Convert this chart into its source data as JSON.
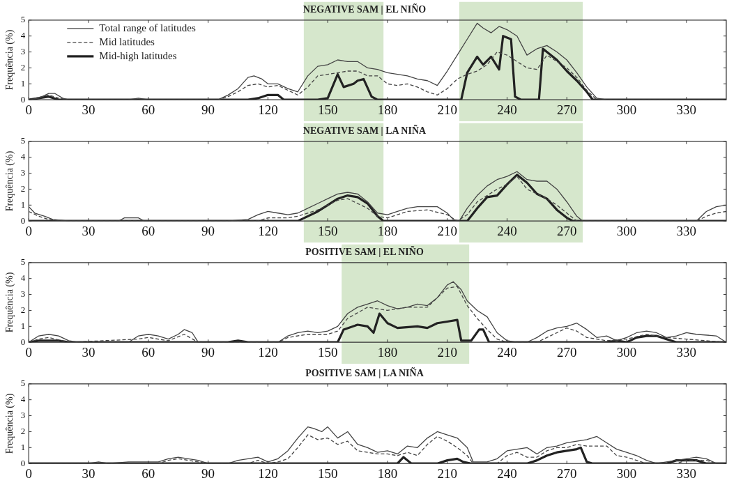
{
  "chart_data": [
    {
      "type": "line",
      "title": "NEGATIVE SAM | EL NIÑO",
      "ylabel": "Frequência (%)",
      "xlim": [
        0,
        350
      ],
      "xticks": [
        0,
        30,
        60,
        90,
        120,
        150,
        180,
        210,
        240,
        270,
        300,
        330
      ],
      "ylim": [
        0,
        5
      ],
      "yticks": [
        0,
        1,
        2,
        3,
        4,
        5
      ],
      "grid": false,
      "legend": "top left",
      "marker": "none",
      "bands": [
        {
          "axis": "x",
          "from": 138,
          "to": 178,
          "color": "#d6e7cc"
        },
        {
          "axis": "x",
          "from": 216,
          "to": 278,
          "color": "#d6e7cc"
        }
      ],
      "series": [
        {
          "name": "Total range of latitudes",
          "color": "#444444",
          "line_style": "solid",
          "x": [
            0,
            5,
            10,
            13,
            17,
            20,
            50,
            55,
            60,
            95,
            100,
            105,
            110,
            113,
            117,
            120,
            125,
            130,
            135,
            140,
            145,
            150,
            155,
            160,
            165,
            170,
            175,
            180,
            185,
            190,
            195,
            200,
            205,
            210,
            215,
            220,
            225,
            228,
            232,
            236,
            240,
            245,
            250,
            255,
            260,
            265,
            270,
            275,
            280,
            285,
            290,
            350
          ],
          "values": [
            0,
            0.1,
            0.4,
            0.4,
            0.1,
            0,
            0,
            0.1,
            0,
            0,
            0.3,
            0.7,
            1.4,
            1.5,
            1.3,
            1.0,
            1.0,
            0.7,
            0.5,
            1.5,
            2.1,
            2.2,
            2.5,
            2.4,
            2.4,
            2.0,
            1.9,
            1.7,
            1.6,
            1.5,
            1.3,
            1.2,
            0.9,
            1.8,
            2.8,
            3.8,
            4.8,
            4.5,
            4.2,
            4.6,
            4.4,
            4.0,
            2.8,
            3.2,
            3.4,
            3.0,
            2.5,
            1.7,
            0.8,
            0.1,
            0,
            0
          ]
        },
        {
          "name": "Mid latitudes",
          "color": "#444444",
          "line_style": "dashed",
          "x": [
            0,
            10,
            15,
            20,
            95,
            100,
            105,
            110,
            115,
            120,
            125,
            130,
            135,
            140,
            145,
            150,
            155,
            160,
            165,
            170,
            175,
            180,
            185,
            190,
            195,
            200,
            205,
            210,
            215,
            220,
            225,
            230,
            235,
            240,
            245,
            250,
            255,
            260,
            265,
            270,
            275,
            280,
            285,
            350
          ],
          "values": [
            0,
            0.3,
            0.1,
            0,
            0,
            0.2,
            0.5,
            0.9,
            1.0,
            0.8,
            0.9,
            0.6,
            0.3,
            0.8,
            1.5,
            1.6,
            1.7,
            1.8,
            1.8,
            1.5,
            1.5,
            1.0,
            0.9,
            1.0,
            0.8,
            0.5,
            0.3,
            0.7,
            1.3,
            1.6,
            1.8,
            2.2,
            3.0,
            2.8,
            2.4,
            2.0,
            1.9,
            2.8,
            2.4,
            2.0,
            1.4,
            0.6,
            0,
            0
          ]
        },
        {
          "name": "Mid-high latitudes",
          "color": "#222222",
          "line_style": "solid",
          "x": [
            0,
            10,
            15,
            110,
            115,
            120,
            125,
            128,
            145,
            150,
            155,
            158,
            163,
            165,
            168,
            172,
            175,
            217,
            220,
            225,
            228,
            232,
            236,
            238,
            242,
            244,
            247,
            256,
            258,
            265,
            270,
            275,
            280,
            283,
            350
          ],
          "values": [
            0,
            0.2,
            0,
            0,
            0.1,
            0.3,
            0.3,
            0,
            0,
            0.1,
            1.6,
            0.8,
            1.0,
            1.2,
            1.3,
            0.2,
            0,
            0,
            1.7,
            2.7,
            2.2,
            2.7,
            1.9,
            4.0,
            3.8,
            0.2,
            0,
            0,
            3.2,
            2.5,
            1.8,
            1.2,
            0.5,
            0,
            0
          ]
        }
      ]
    },
    {
      "type": "line",
      "title": "NEGATIVE SAM | LA NIÑA",
      "ylabel": "Frequência (%)",
      "xlim": [
        0,
        350
      ],
      "xticks": [
        0,
        30,
        60,
        90,
        120,
        150,
        180,
        210,
        240,
        270,
        300,
        330
      ],
      "ylim": [
        0,
        5
      ],
      "yticks": [
        0,
        1,
        2,
        3,
        4,
        5
      ],
      "grid": false,
      "marker": "none",
      "bands": [
        {
          "axis": "x",
          "from": 138,
          "to": 178,
          "color": "#d6e7cc"
        },
        {
          "axis": "x",
          "from": 216,
          "to": 278,
          "color": "#d6e7cc"
        }
      ],
      "series": [
        {
          "color": "#444444",
          "line_style": "solid",
          "x": [
            0,
            3,
            8,
            12,
            20,
            45,
            48,
            55,
            58,
            100,
            110,
            115,
            120,
            125,
            130,
            135,
            140,
            145,
            150,
            155,
            160,
            165,
            170,
            175,
            180,
            185,
            190,
            195,
            200,
            205,
            210,
            213,
            216,
            220,
            225,
            230,
            235,
            240,
            245,
            250,
            255,
            260,
            265,
            270,
            275,
            278,
            335,
            340,
            345,
            350
          ],
          "values": [
            0.9,
            0.5,
            0.3,
            0.1,
            0,
            0,
            0.2,
            0.2,
            0,
            0,
            0.1,
            0.4,
            0.6,
            0.5,
            0.4,
            0.5,
            0.8,
            1.1,
            1.4,
            1.7,
            1.8,
            1.7,
            1.2,
            0.5,
            0.4,
            0.6,
            0.8,
            0.9,
            0.9,
            0.9,
            0.5,
            0.1,
            0,
            0.8,
            1.6,
            2.2,
            2.6,
            2.8,
            3.1,
            2.6,
            2.5,
            2.5,
            2.0,
            1.2,
            0.3,
            0,
            0,
            0.6,
            0.9,
            1.0
          ]
        },
        {
          "color": "#444444",
          "line_style": "dashed",
          "x": [
            0,
            5,
            10,
            20,
            115,
            120,
            130,
            135,
            140,
            145,
            150,
            155,
            160,
            165,
            170,
            175,
            180,
            190,
            200,
            210,
            215,
            220,
            225,
            230,
            235,
            240,
            245,
            250,
            255,
            260,
            265,
            270,
            275,
            335,
            340,
            345,
            350
          ],
          "values": [
            0.6,
            0.3,
            0.1,
            0,
            0,
            0.2,
            0.2,
            0.3,
            0.5,
            0.7,
            1.0,
            1.3,
            1.4,
            1.1,
            0.8,
            0.3,
            0.2,
            0.6,
            0.7,
            0.4,
            0,
            0.4,
            1.2,
            1.6,
            2.0,
            2.3,
            2.8,
            2.0,
            1.7,
            1.4,
            1.0,
            0.5,
            0,
            0,
            0.3,
            0.5,
            0.6
          ]
        },
        {
          "color": "#222222",
          "line_style": "solid",
          "x": [
            0,
            135,
            140,
            145,
            150,
            155,
            160,
            165,
            170,
            175,
            178,
            220,
            225,
            230,
            235,
            240,
            245,
            250,
            255,
            260,
            265,
            270,
            273,
            350
          ],
          "values": [
            0,
            0,
            0.3,
            0.6,
            1.0,
            1.4,
            1.6,
            1.5,
            1.1,
            0.3,
            0,
            0,
            0.8,
            1.5,
            1.6,
            2.3,
            2.9,
            2.4,
            1.7,
            1.4,
            0.7,
            0.2,
            0,
            0
          ]
        }
      ]
    },
    {
      "type": "line",
      "title": "POSITIVE SAM | EL NIÑO",
      "ylabel": "Frequência (%)",
      "xlim": [
        0,
        350
      ],
      "xticks": [
        0,
        30,
        60,
        90,
        120,
        150,
        180,
        210,
        240,
        270,
        300,
        330
      ],
      "ylim": [
        0,
        5
      ],
      "yticks": [
        0,
        1,
        2,
        3,
        4,
        5
      ],
      "grid": false,
      "marker": "none",
      "bands": [
        {
          "axis": "x",
          "from": 157,
          "to": 221,
          "color": "#d6e7cc"
        }
      ],
      "series": [
        {
          "color": "#444444",
          "line_style": "solid",
          "x": [
            0,
            5,
            10,
            15,
            20,
            25,
            50,
            55,
            60,
            65,
            70,
            75,
            78,
            82,
            85,
            125,
            130,
            135,
            140,
            145,
            150,
            155,
            160,
            165,
            170,
            175,
            180,
            185,
            190,
            195,
            200,
            205,
            210,
            213,
            217,
            220,
            225,
            230,
            235,
            240,
            245,
            250,
            255,
            260,
            265,
            270,
            275,
            280,
            285,
            290,
            295,
            300,
            305,
            310,
            315,
            320,
            325,
            330,
            335,
            345,
            350
          ],
          "values": [
            0,
            0.4,
            0.5,
            0.4,
            0.1,
            0,
            0,
            0.4,
            0.5,
            0.4,
            0.2,
            0.5,
            0.8,
            0.6,
            0,
            0,
            0.4,
            0.6,
            0.7,
            0.6,
            0.7,
            1.0,
            1.8,
            2.2,
            2.4,
            2.6,
            2.3,
            2.1,
            2.2,
            2.4,
            2.3,
            2.8,
            3.6,
            3.8,
            3.3,
            2.6,
            2.0,
            1.6,
            0.6,
            0.1,
            0,
            0,
            0.3,
            0.7,
            0.9,
            1.0,
            1.2,
            0.8,
            0.3,
            0.4,
            0.1,
            0.3,
            0.6,
            0.7,
            0.6,
            0.3,
            0.4,
            0.6,
            0.5,
            0.4,
            0
          ]
        },
        {
          "color": "#444444",
          "line_style": "dashed",
          "x": [
            0,
            5,
            10,
            20,
            55,
            60,
            70,
            78,
            85,
            125,
            130,
            140,
            150,
            155,
            160,
            170,
            180,
            190,
            200,
            210,
            215,
            220,
            225,
            230,
            235,
            240,
            255,
            265,
            270,
            275,
            280,
            290,
            300,
            310,
            320,
            330,
            340,
            350
          ],
          "values": [
            0,
            0.2,
            0.3,
            0,
            0.2,
            0.3,
            0.1,
            0.5,
            0,
            0,
            0.3,
            0.5,
            0.5,
            0.7,
            1.5,
            2.2,
            2.0,
            2.2,
            2.2,
            3.4,
            3.5,
            2.3,
            1.5,
            0.8,
            0.2,
            0,
            0,
            0.6,
            0.9,
            0.7,
            0.3,
            0.1,
            0.2,
            0.5,
            0.3,
            0.2,
            0.1,
            0
          ]
        },
        {
          "color": "#222222",
          "line_style": "solid",
          "x": [
            0,
            5,
            15,
            20,
            100,
            105,
            110,
            155,
            158,
            165,
            170,
            173,
            176,
            180,
            185,
            195,
            200,
            205,
            210,
            215,
            217,
            222,
            226,
            228,
            231,
            290,
            295,
            300,
            305,
            310,
            315,
            320,
            325,
            350
          ],
          "values": [
            0,
            0.1,
            0.1,
            0,
            0,
            0.1,
            0,
            0,
            0.8,
            1.1,
            1.0,
            0.6,
            1.8,
            1.2,
            0.9,
            1.0,
            0.9,
            1.2,
            1.3,
            1.4,
            0.1,
            0.1,
            0.8,
            0.8,
            0,
            0,
            0.1,
            0,
            0.3,
            0.4,
            0.4,
            0.2,
            0,
            0
          ]
        }
      ]
    },
    {
      "type": "line",
      "title": "POSITIVE SAM | LA NIÑA",
      "ylabel": "Frequência (%)",
      "xlim": [
        0,
        350
      ],
      "xticks": [
        0,
        30,
        60,
        90,
        120,
        150,
        180,
        210,
        240,
        270,
        300,
        330
      ],
      "ylim": [
        0,
        5
      ],
      "yticks": [
        0,
        1,
        2,
        3,
        4,
        5
      ],
      "grid": false,
      "marker": "none",
      "series": [
        {
          "color": "#444444",
          "line_style": "solid",
          "x": [
            0,
            30,
            35,
            40,
            50,
            65,
            70,
            75,
            80,
            85,
            90,
            100,
            105,
            110,
            115,
            120,
            125,
            130,
            135,
            140,
            143,
            147,
            150,
            155,
            160,
            165,
            170,
            175,
            180,
            185,
            190,
            195,
            200,
            205,
            210,
            215,
            220,
            223,
            230,
            235,
            240,
            245,
            250,
            255,
            260,
            265,
            270,
            275,
            280,
            285,
            290,
            295,
            300,
            305,
            310,
            315,
            320,
            325,
            330,
            335,
            340,
            345,
            350
          ],
          "values": [
            0,
            0,
            0.1,
            0,
            0.1,
            0.1,
            0.3,
            0.4,
            0.3,
            0.2,
            0,
            0,
            0.2,
            0.3,
            0.4,
            0.1,
            0.3,
            0.8,
            1.6,
            2.3,
            2.2,
            2.0,
            2.3,
            1.6,
            2.0,
            1.2,
            1.0,
            0.7,
            0.8,
            0.6,
            1.1,
            1.0,
            1.6,
            2.0,
            1.8,
            1.6,
            1.0,
            0.1,
            0.1,
            0.3,
            0.8,
            0.9,
            1.0,
            0.6,
            1.0,
            1.1,
            1.3,
            1.4,
            1.5,
            1.7,
            1.3,
            0.9,
            0.7,
            0.5,
            0.2,
            0,
            0.1,
            0.2,
            0.3,
            0.4,
            0.3,
            0,
            0
          ]
        },
        {
          "color": "#444444",
          "line_style": "dashed",
          "x": [
            0,
            65,
            70,
            75,
            85,
            90,
            110,
            115,
            120,
            125,
            130,
            135,
            140,
            145,
            150,
            155,
            160,
            165,
            170,
            175,
            180,
            185,
            190,
            195,
            200,
            205,
            210,
            215,
            220,
            223,
            235,
            240,
            245,
            250,
            255,
            260,
            265,
            270,
            275,
            280,
            285,
            290,
            295,
            300,
            305,
            310,
            325,
            330,
            340,
            345,
            350
          ],
          "values": [
            0,
            0,
            0.2,
            0.3,
            0.1,
            0,
            0,
            0.2,
            0,
            0.1,
            0.3,
            1.0,
            1.8,
            1.5,
            1.6,
            1.2,
            1.4,
            0.8,
            0.7,
            0.6,
            0.6,
            0.5,
            0.7,
            0.5,
            1.2,
            1.7,
            1.4,
            1.0,
            0.5,
            0,
            0,
            0.5,
            0.7,
            0.4,
            0.4,
            0.8,
            1.0,
            1.0,
            1.2,
            1.1,
            1.1,
            1.1,
            0.5,
            0.4,
            0.2,
            0,
            0,
            0.2,
            0.2,
            0,
            0
          ]
        },
        {
          "color": "#222222",
          "line_style": "solid",
          "x": [
            0,
            185,
            188,
            192,
            205,
            210,
            215,
            218,
            222,
            250,
            255,
            260,
            265,
            270,
            275,
            277,
            280,
            283,
            320,
            325,
            335,
            340,
            350
          ],
          "values": [
            0,
            0,
            0.4,
            0,
            0,
            0.2,
            0.3,
            0.1,
            0,
            0,
            0.2,
            0.5,
            0.7,
            0.8,
            0.9,
            1.0,
            0.1,
            0,
            0,
            0.2,
            0.2,
            0,
            0
          ]
        }
      ]
    }
  ]
}
